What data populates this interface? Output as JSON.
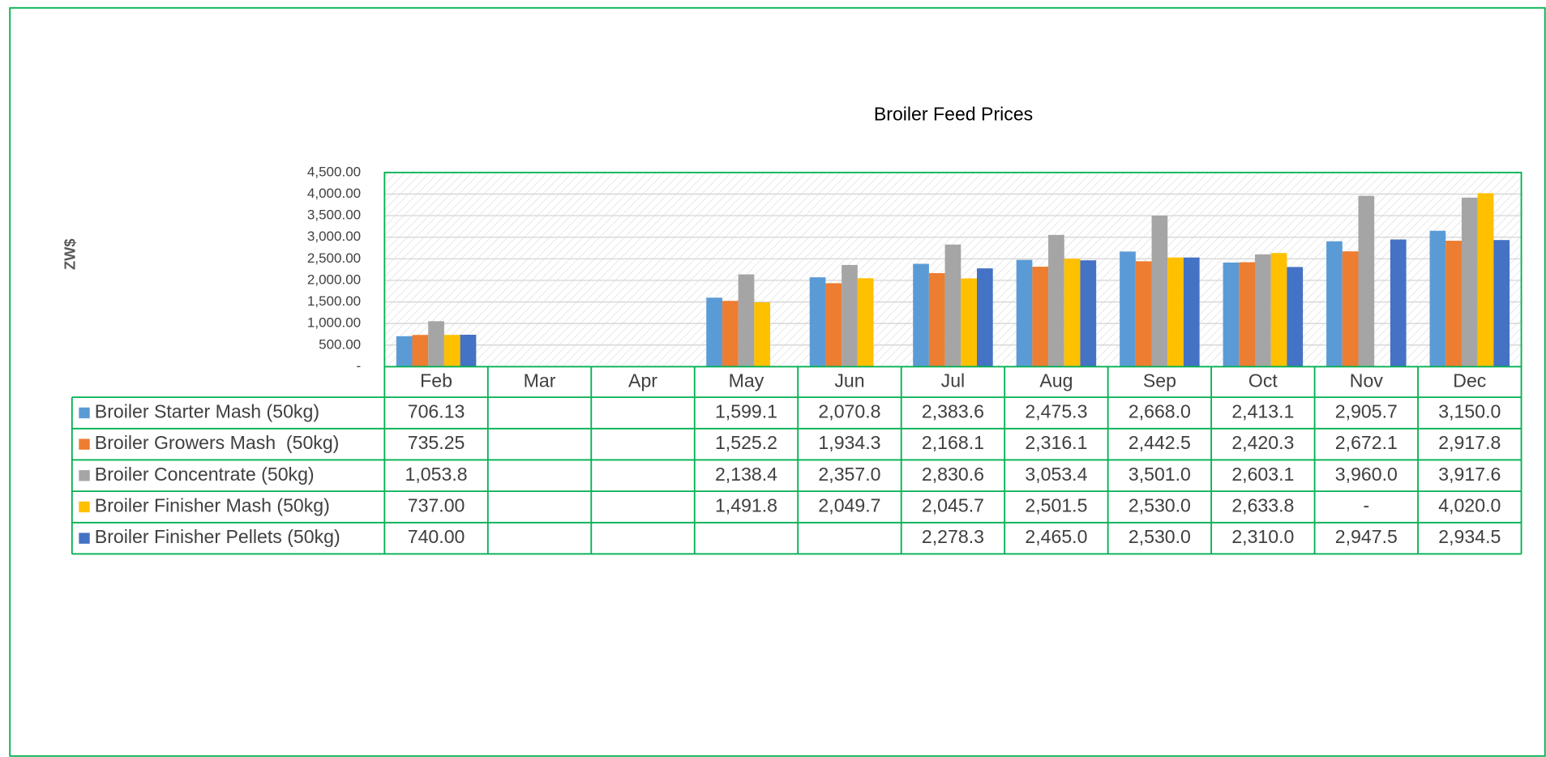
{
  "chart_data": {
    "type": "bar",
    "title": "Broiler Feed Prices",
    "y_label": "ZW$",
    "categories": [
      "Feb",
      "Mar",
      "Apr",
      "May",
      "Jun",
      "Jul",
      "Aug",
      "Sep",
      "Oct",
      "Nov",
      "Dec"
    ],
    "series": [
      {
        "name": "Broiler Starter Mash (50kg)",
        "color": "#5b9bd5",
        "values": [
          706.13,
          null,
          null,
          1599.1,
          2070.8,
          2383.6,
          2475.3,
          2668.0,
          2413.1,
          2905.7,
          3150.0
        ],
        "value_labels": [
          "706.13",
          null,
          null,
          "1,599.1",
          "2,070.8",
          "2,383.6",
          "2,475.3",
          "2,668.0",
          "2,413.1",
          "2,905.7",
          "3,150.0"
        ]
      },
      {
        "name": "Broiler Growers Mash  (50kg)",
        "color": "#ed7d31",
        "values": [
          735.25,
          null,
          null,
          1525.2,
          1934.3,
          2168.1,
          2316.1,
          2442.5,
          2420.3,
          2672.1,
          2917.8
        ],
        "value_labels": [
          "735.25",
          null,
          null,
          "1,525.2",
          "1,934.3",
          "2,168.1",
          "2,316.1",
          "2,442.5",
          "2,420.3",
          "2,672.1",
          "2,917.8"
        ]
      },
      {
        "name": "Broiler Concentrate (50kg)",
        "color": "#a5a5a5",
        "values": [
          1053.8,
          null,
          null,
          2138.4,
          2357.0,
          2830.6,
          3053.4,
          3501.0,
          2603.1,
          3960.0,
          3917.6
        ],
        "value_labels": [
          "1,053.8",
          null,
          null,
          "2,138.4",
          "2,357.0",
          "2,830.6",
          "3,053.4",
          "3,501.0",
          "2,603.1",
          "3,960.0",
          "3,917.6"
        ]
      },
      {
        "name": "Broiler Finisher Mash (50kg)",
        "color": "#ffc000",
        "values": [
          737.0,
          null,
          null,
          1491.8,
          2049.7,
          2045.7,
          2501.5,
          2530.0,
          2633.8,
          null,
          4020.0
        ],
        "value_labels": [
          "737.00",
          null,
          null,
          "1,491.8",
          "2,049.7",
          "2,045.7",
          "2,501.5",
          "2,530.0",
          "2,633.8",
          "-",
          "4,020.0"
        ]
      },
      {
        "name": "Broiler Finisher Pellets (50kg)",
        "color": "#4472c4",
        "values": [
          740.0,
          null,
          null,
          null,
          null,
          2278.3,
          2465.0,
          2530.0,
          2310.0,
          2947.5,
          2934.5
        ],
        "value_labels": [
          "740.00",
          null,
          null,
          null,
          null,
          "2,278.3",
          "2,465.0",
          "2,530.0",
          "2,310.0",
          "2,947.5",
          "2,934.5"
        ]
      }
    ],
    "ylim": [
      0,
      4500
    ],
    "yticks": [
      {
        "value": 0,
        "label": "-"
      },
      {
        "value": 500,
        "label": "500.00"
      },
      {
        "value": 1000,
        "label": "1,000.00"
      },
      {
        "value": 1500,
        "label": "1,500.00"
      },
      {
        "value": 2000,
        "label": "2,000.00"
      },
      {
        "value": 2500,
        "label": "2,500.00"
      },
      {
        "value": 3000,
        "label": "3,000.00"
      },
      {
        "value": 3500,
        "label": "3,500.00"
      },
      {
        "value": 4000,
        "label": "4,000.00"
      },
      {
        "value": 4500,
        "label": "4,500.00"
      }
    ],
    "grid": true
  }
}
